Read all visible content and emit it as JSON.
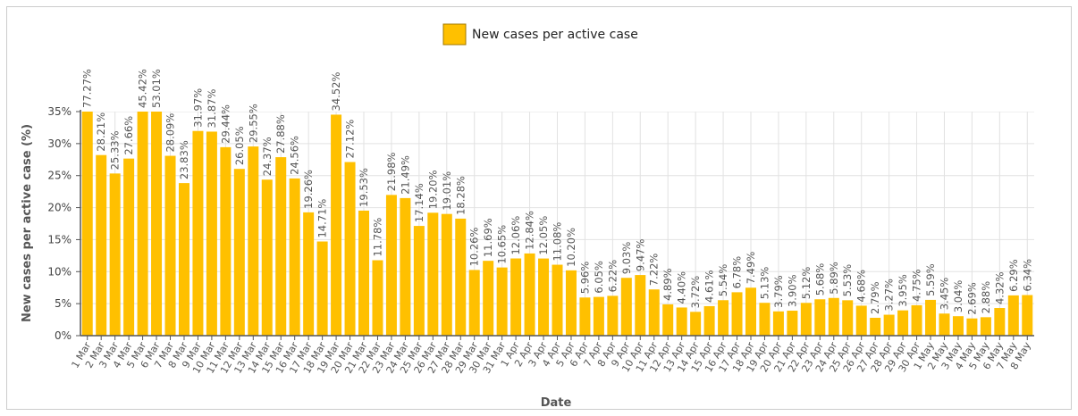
{
  "chart_data": {
    "type": "bar",
    "legend": "New cases per active case",
    "y_label": "New cases per active case (%)",
    "x_label": "Date",
    "color": "#FFC000",
    "categories": [
      "1 Mar",
      "2 Mar",
      "3 Mar",
      "4 Mar",
      "5 Mar",
      "6 Mar",
      "7 Mar",
      "8 Mar",
      "9 Mar",
      "10 Mar",
      "11 Mar",
      "12 Mar",
      "13 Mar",
      "14 Mar",
      "15 Mar",
      "16 Mar",
      "17 Mar",
      "18 Mar",
      "19 Mar",
      "20 Mar",
      "21 Mar",
      "22 Mar",
      "23 Mar",
      "24 Mar",
      "25 Mar",
      "26 Mar",
      "27 Mar",
      "28 Mar",
      "29 Mar",
      "30 Mar",
      "31 Mar",
      "1 Apr",
      "2 Apr",
      "3 Apr",
      "4 Apr",
      "5 Apr",
      "6 Apr",
      "7 Apr",
      "8 Apr",
      "9 Apr",
      "10 Apr",
      "11 Apr",
      "12 Apr",
      "13 Apr",
      "14 Apr",
      "15 Apr",
      "16 Apr",
      "17 Apr",
      "18 Apr",
      "19 Apr",
      "20 Apr",
      "21 Apr",
      "22 Apr",
      "23 Apr",
      "24 Apr",
      "25 Apr",
      "26 Apr",
      "27 Apr",
      "28 Apr",
      "29 Apr",
      "30 Apr",
      "1 May",
      "2 May",
      "3 May",
      "4 May",
      "5 May",
      "6 May",
      "7 May",
      "8 May"
    ],
    "values": [
      77.27,
      28.21,
      25.33,
      27.66,
      45.42,
      53.01,
      28.09,
      23.83,
      31.97,
      31.87,
      29.44,
      26.05,
      29.55,
      24.37,
      27.88,
      24.56,
      19.26,
      14.71,
      34.52,
      27.12,
      19.53,
      11.78,
      21.98,
      21.49,
      17.14,
      19.2,
      19.01,
      18.28,
      10.26,
      11.69,
      10.65,
      12.06,
      12.84,
      12.05,
      11.08,
      10.2,
      5.96,
      6.05,
      6.22,
      9.03,
      9.47,
      7.22,
      4.89,
      4.4,
      3.72,
      4.61,
      5.54,
      6.78,
      7.49,
      5.13,
      3.79,
      3.9,
      5.12,
      5.68,
      5.89,
      5.53,
      4.68,
      2.79,
      3.27,
      3.95,
      4.75,
      5.59,
      3.45,
      3.04,
      2.69,
      2.88,
      4.32,
      6.29,
      6.34
    ],
    "value_labels": [
      "77.27%",
      "28.21%",
      "25.33%",
      "27.66%",
      "45.42%",
      "53.01%",
      "28.09%",
      "23.83%",
      "31.97%",
      "31.87%",
      "29.44%",
      "26.05%",
      "29.55%",
      "24.37%",
      "27.88%",
      "24.56%",
      "19.26%",
      "14.71%",
      "34.52%",
      "27.12%",
      "19.53%",
      "11.78%",
      "21.98%",
      "21.49%",
      "17.14%",
      "19.20%",
      "19.01%",
      "18.28%",
      "10.26%",
      "11.69%",
      "10.65%",
      "12.06%",
      "12.84%",
      "12.05%",
      "11.08%",
      "10.20%",
      "5.96%",
      "6.05%",
      "6.22%",
      "9.03%",
      "9.47%",
      "7.22%",
      "4.89%",
      "4.40%",
      "3.72%",
      "4.61%",
      "5.54%",
      "6.78%",
      "7.49%",
      "5.13%",
      "3.79%",
      "3.90%",
      "5.12%",
      "5.68%",
      "5.89%",
      "5.53%",
      "4.68%",
      "2.79%",
      "3.27%",
      "3.95%",
      "4.75%",
      "5.59%",
      "3.45%",
      "3.04%",
      "2.69%",
      "2.88%",
      "4.32%",
      "6.29%",
      "6.34%"
    ],
    "ylim": [
      0,
      35
    ],
    "yticks": [
      {
        "value": 0,
        "label": "0%"
      },
      {
        "value": 5,
        "label": "5%"
      },
      {
        "value": 10,
        "label": "10%"
      },
      {
        "value": 15,
        "label": "15%"
      },
      {
        "value": 20,
        "label": "20%"
      },
      {
        "value": 25,
        "label": "25%"
      },
      {
        "value": 30,
        "label": "30%"
      },
      {
        "value": 35,
        "label": "35%"
      }
    ],
    "grid": true
  }
}
